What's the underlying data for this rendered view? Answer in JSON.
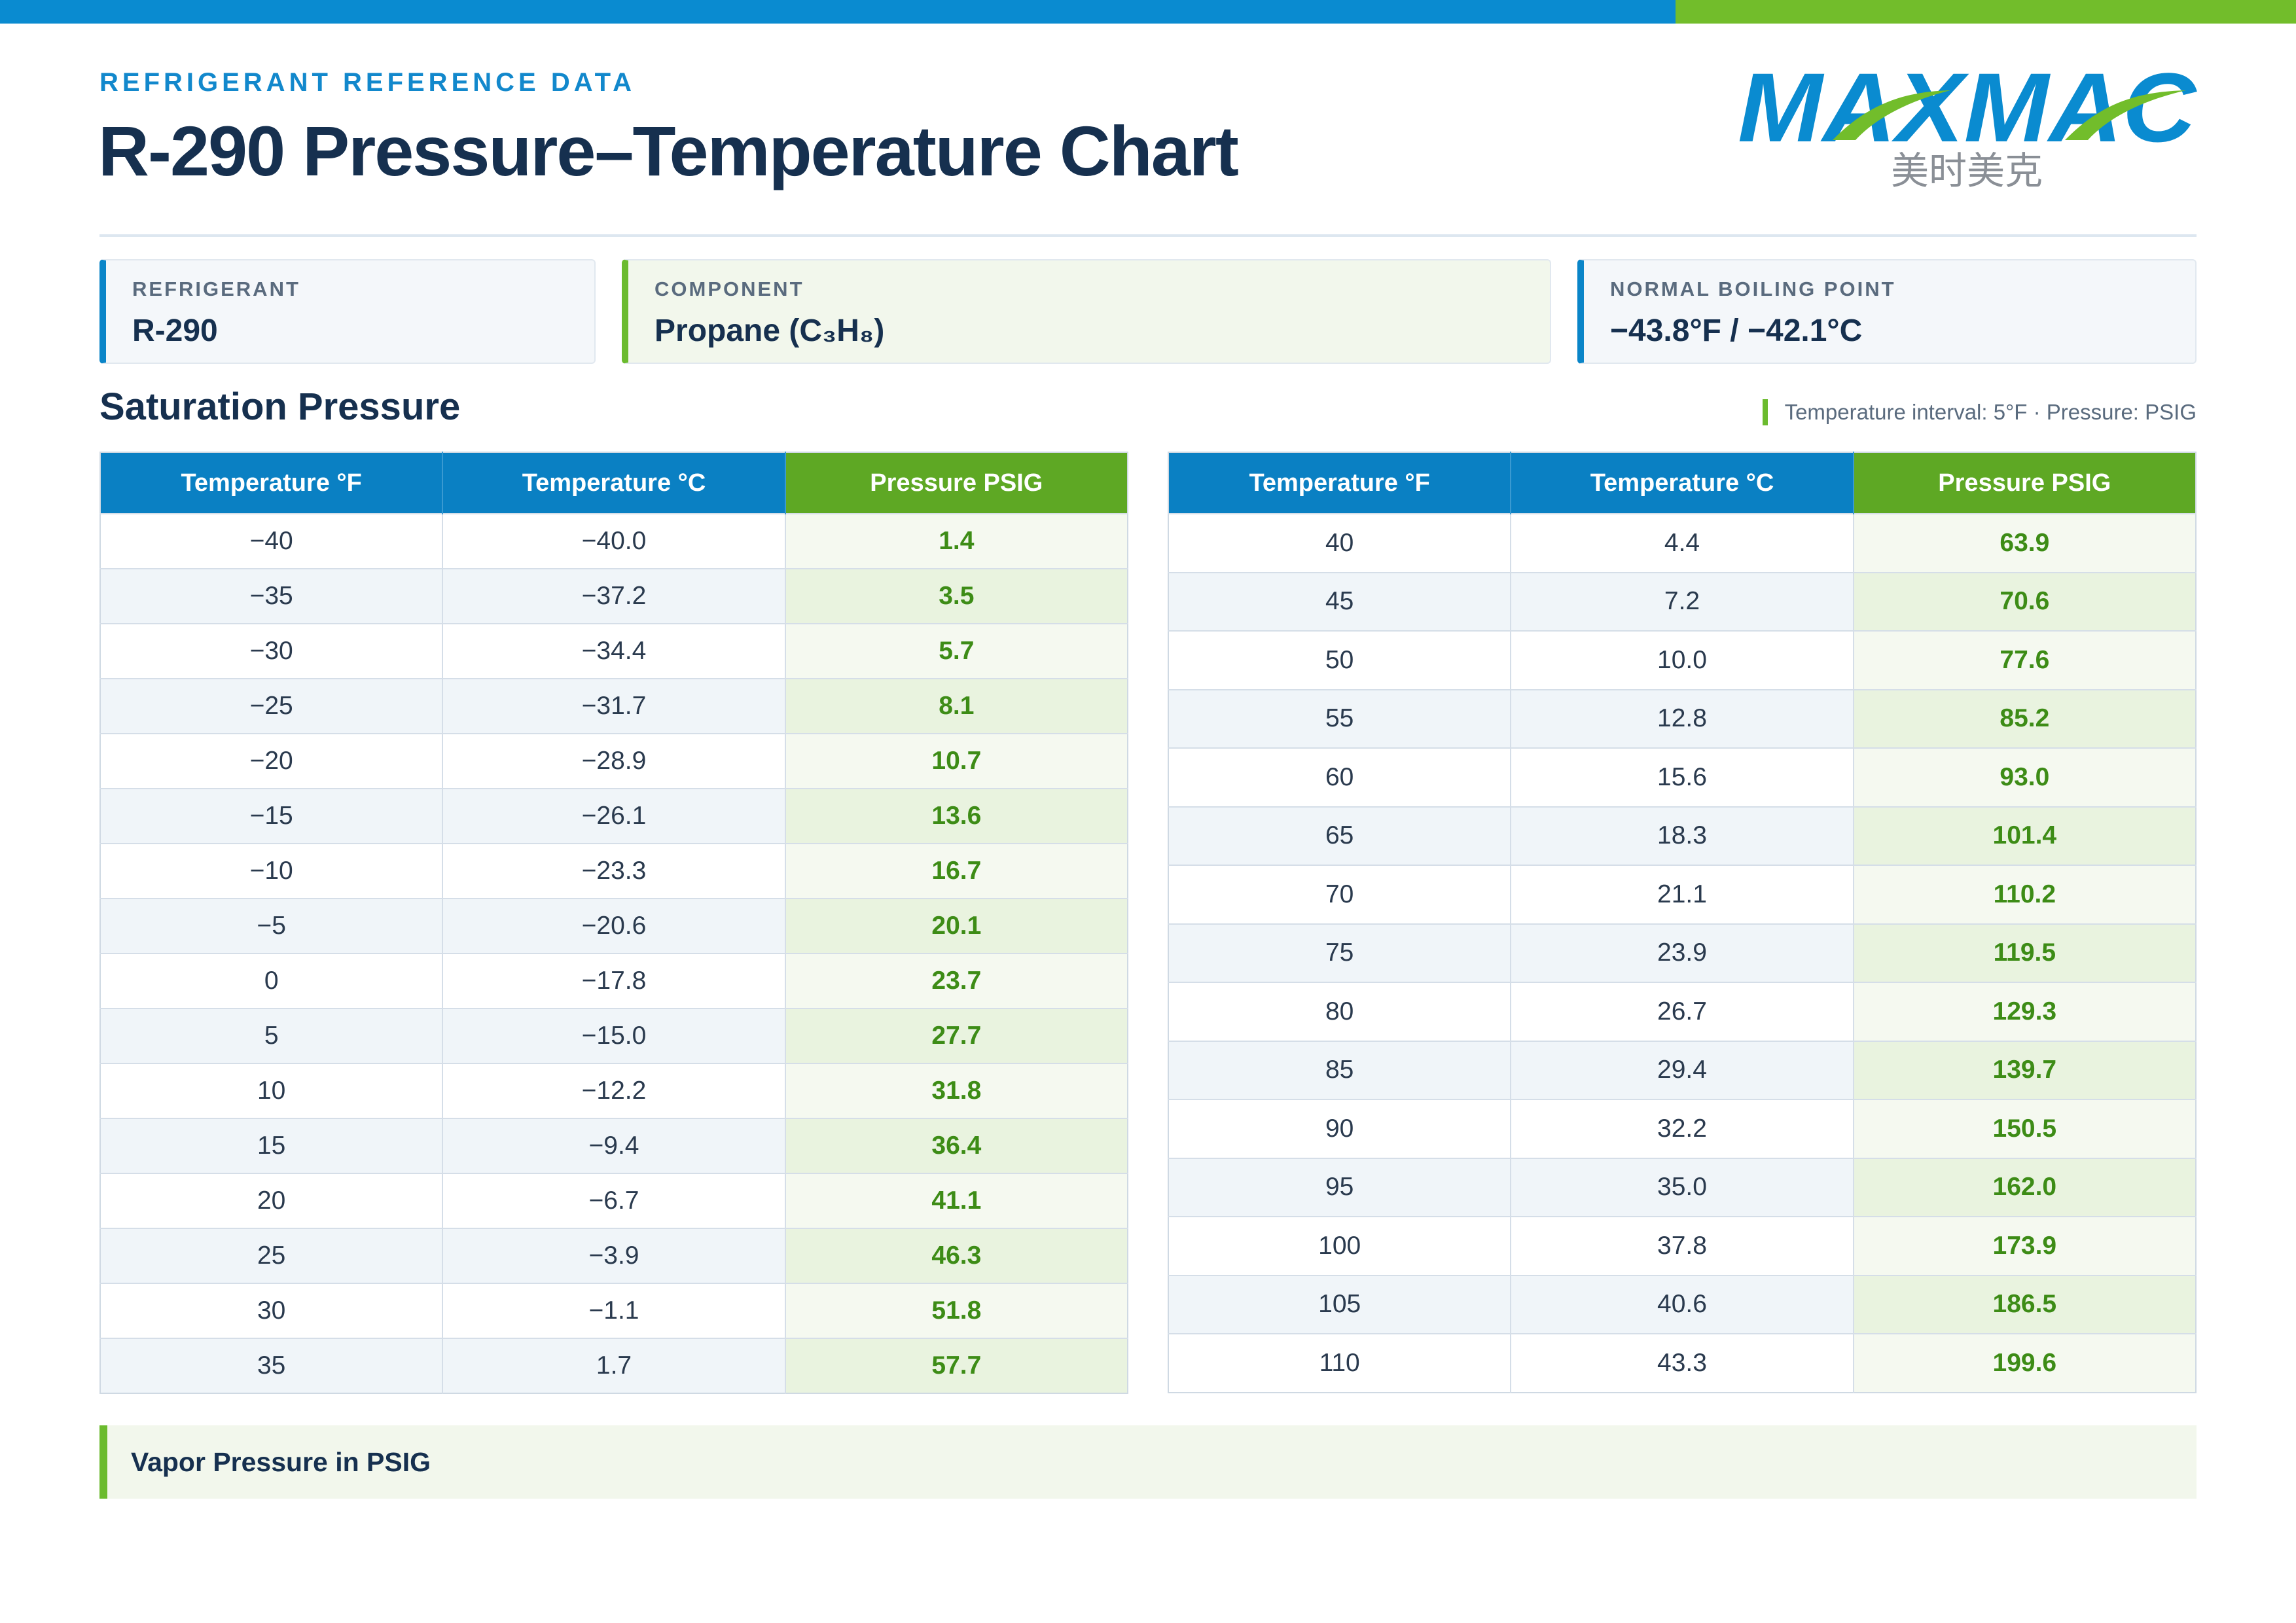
{
  "brand": {
    "logo_text": "MAXMAC",
    "logo_subtext": "美时美克",
    "colors": {
      "blue": "#0a8bd0",
      "green": "#72bd2b",
      "navy": "#16304f"
    }
  },
  "header": {
    "eyebrow": "REFRIGERANT REFERENCE DATA",
    "title": "R-290 Pressure–Temperature Chart"
  },
  "cards": [
    {
      "label": "REFRIGERANT",
      "value": "R-290"
    },
    {
      "label": "COMPONENT",
      "value": "Propane (C₃H₈)"
    },
    {
      "label": "NORMAL BOILING POINT",
      "value": "−43.8°F / −42.1°C"
    }
  ],
  "section": {
    "title": "Saturation Pressure",
    "note": "Temperature interval: 5°F · Pressure: PSIG"
  },
  "table_headers": [
    "Temperature °F",
    "Temperature °C",
    "Pressure PSIG"
  ],
  "tables": [
    [
      [
        "−40",
        "−40.0",
        "1.4"
      ],
      [
        "−35",
        "−37.2",
        "3.5"
      ],
      [
        "−30",
        "−34.4",
        "5.7"
      ],
      [
        "−25",
        "−31.7",
        "8.1"
      ],
      [
        "−20",
        "−28.9",
        "10.7"
      ],
      [
        "−15",
        "−26.1",
        "13.6"
      ],
      [
        "−10",
        "−23.3",
        "16.7"
      ],
      [
        "−5",
        "−20.6",
        "20.1"
      ],
      [
        "0",
        "−17.8",
        "23.7"
      ],
      [
        "5",
        "−15.0",
        "27.7"
      ],
      [
        "10",
        "−12.2",
        "31.8"
      ],
      [
        "15",
        "−9.4",
        "36.4"
      ],
      [
        "20",
        "−6.7",
        "41.1"
      ],
      [
        "25",
        "−3.9",
        "46.3"
      ],
      [
        "30",
        "−1.1",
        "51.8"
      ],
      [
        "35",
        "1.7",
        "57.7"
      ]
    ],
    [
      [
        "40",
        "4.4",
        "63.9"
      ],
      [
        "45",
        "7.2",
        "70.6"
      ],
      [
        "50",
        "10.0",
        "77.6"
      ],
      [
        "55",
        "12.8",
        "85.2"
      ],
      [
        "60",
        "15.6",
        "93.0"
      ],
      [
        "65",
        "18.3",
        "101.4"
      ],
      [
        "70",
        "21.1",
        "110.2"
      ],
      [
        "75",
        "23.9",
        "119.5"
      ],
      [
        "80",
        "26.7",
        "129.3"
      ],
      [
        "85",
        "29.4",
        "139.7"
      ],
      [
        "90",
        "32.2",
        "150.5"
      ],
      [
        "95",
        "35.0",
        "162.0"
      ],
      [
        "100",
        "37.8",
        "173.9"
      ],
      [
        "105",
        "40.6",
        "186.5"
      ],
      [
        "110",
        "43.3",
        "199.6"
      ]
    ]
  ],
  "footer": {
    "text": "Vapor Pressure in PSIG"
  }
}
